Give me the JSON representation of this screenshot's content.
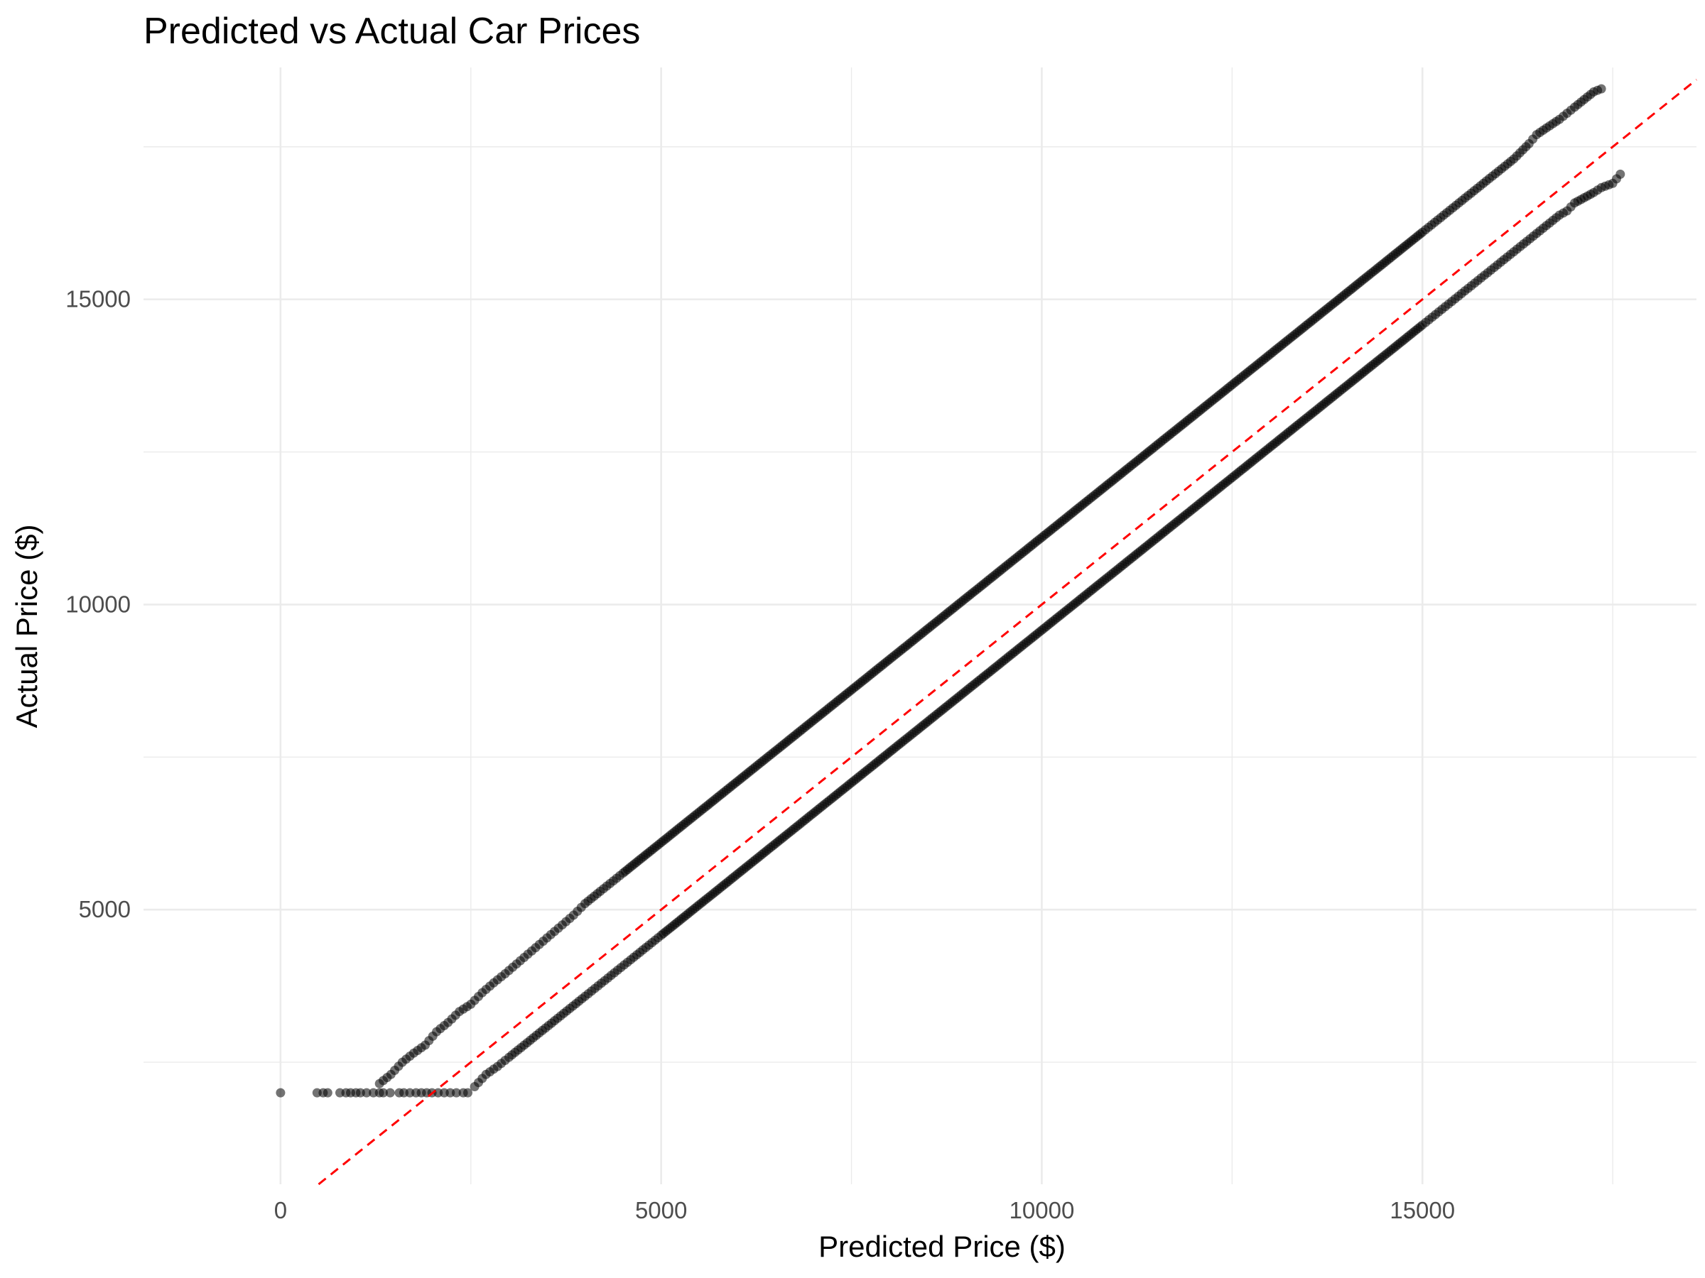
{
  "chart_data": {
    "type": "scatter",
    "title": "Predicted vs Actual Car Prices",
    "xlabel": "Predicted Price ($)",
    "ylabel": "Actual Price ($)",
    "xlim": [
      -1800,
      18600
    ],
    "ylim": [
      500,
      18800
    ],
    "x_ticks": [
      0,
      5000,
      10000,
      15000
    ],
    "x_tick_labels": [
      "0",
      "5000",
      "10000",
      "15000"
    ],
    "y_ticks": [
      5000,
      10000,
      15000
    ],
    "y_tick_labels": [
      "5000",
      "10000",
      "15000"
    ],
    "grid": true,
    "point_color": "#000000",
    "point_opacity": 0.55,
    "reference_line": {
      "slope": 1,
      "intercept": 0,
      "style": "dashed",
      "color": "#ff0000"
    },
    "series": [
      {
        "values": [
          [
            0,
            2000
          ],
          [
            480,
            2000
          ],
          [
            560,
            2000
          ],
          [
            620,
            2000
          ],
          [
            780,
            2000
          ],
          [
            860,
            2000
          ],
          [
            920,
            2000
          ],
          [
            990,
            2000
          ],
          [
            1050,
            2000
          ],
          [
            1130,
            2000
          ],
          [
            1220,
            2000
          ],
          [
            1300,
            2000
          ],
          [
            1350,
            2000
          ],
          [
            1440,
            2000
          ],
          [
            1560,
            2000
          ],
          [
            1620,
            2000
          ],
          [
            1700,
            2000
          ],
          [
            1780,
            2000
          ],
          [
            1850,
            2000
          ],
          [
            1920,
            2000
          ],
          [
            1990,
            2000
          ],
          [
            2070,
            2000
          ],
          [
            2150,
            2000
          ],
          [
            2230,
            2000
          ],
          [
            2310,
            2000
          ],
          [
            2400,
            2000
          ],
          [
            2460,
            2000
          ]
        ]
      },
      {
        "values": [
          [
            1300,
            2150
          ],
          [
            1450,
            2300
          ],
          [
            1600,
            2500
          ],
          [
            1750,
            2650
          ],
          [
            1900,
            2780
          ],
          [
            2050,
            3000
          ],
          [
            2200,
            3150
          ],
          [
            2350,
            3330
          ],
          [
            2500,
            3450
          ],
          [
            2650,
            3640
          ],
          [
            2800,
            3800
          ],
          [
            2950,
            3950
          ],
          [
            3100,
            4110
          ],
          [
            3250,
            4270
          ],
          [
            3400,
            4430
          ],
          [
            3550,
            4590
          ],
          [
            3700,
            4750
          ],
          [
            3850,
            4910
          ],
          [
            4000,
            5100
          ],
          [
            4200,
            5300
          ],
          [
            4500,
            5600
          ],
          [
            5000,
            6100
          ],
          [
            5500,
            6600
          ],
          [
            6000,
            7100
          ],
          [
            6500,
            7600
          ],
          [
            7000,
            8100
          ],
          [
            7500,
            8600
          ],
          [
            8000,
            9100
          ],
          [
            8500,
            9600
          ],
          [
            9000,
            10100
          ],
          [
            9500,
            10600
          ],
          [
            10000,
            11100
          ],
          [
            10500,
            11600
          ],
          [
            11000,
            12100
          ],
          [
            11500,
            12600
          ],
          [
            12000,
            13100
          ],
          [
            12500,
            13600
          ],
          [
            13000,
            14100
          ],
          [
            13500,
            14600
          ],
          [
            14000,
            15100
          ],
          [
            14500,
            15600
          ],
          [
            15000,
            16100
          ],
          [
            15200,
            16300
          ],
          [
            15400,
            16500
          ],
          [
            15600,
            16700
          ],
          [
            15800,
            16900
          ],
          [
            16000,
            17100
          ],
          [
            16200,
            17300
          ],
          [
            16400,
            17550
          ],
          [
            16500,
            17700
          ],
          [
            16800,
            17950
          ],
          [
            16900,
            18050
          ],
          [
            17000,
            18150
          ],
          [
            17250,
            18400
          ],
          [
            17350,
            18450
          ]
        ]
      },
      {
        "values": [
          [
            2550,
            2100
          ],
          [
            2700,
            2300
          ],
          [
            2850,
            2430
          ],
          [
            3000,
            2580
          ],
          [
            3200,
            2780
          ],
          [
            3400,
            2980
          ],
          [
            3600,
            3180
          ],
          [
            3800,
            3380
          ],
          [
            4000,
            3580
          ],
          [
            4300,
            3880
          ],
          [
            4600,
            4180
          ],
          [
            5000,
            4580
          ],
          [
            5500,
            5080
          ],
          [
            6000,
            5580
          ],
          [
            6500,
            6080
          ],
          [
            7000,
            6580
          ],
          [
            7500,
            7080
          ],
          [
            8000,
            7580
          ],
          [
            8500,
            8080
          ],
          [
            9000,
            8580
          ],
          [
            9500,
            9080
          ],
          [
            10000,
            9580
          ],
          [
            10500,
            10080
          ],
          [
            11000,
            10580
          ],
          [
            11500,
            11080
          ],
          [
            12000,
            11580
          ],
          [
            12500,
            12080
          ],
          [
            13000,
            12580
          ],
          [
            13500,
            13080
          ],
          [
            14000,
            13580
          ],
          [
            14500,
            14080
          ],
          [
            15000,
            14580
          ],
          [
            15300,
            14880
          ],
          [
            15600,
            15180
          ],
          [
            15900,
            15480
          ],
          [
            16200,
            15780
          ],
          [
            16500,
            16080
          ],
          [
            16800,
            16380
          ],
          [
            16900,
            16450
          ],
          [
            17000,
            16580
          ],
          [
            17250,
            16750
          ],
          [
            17350,
            16830
          ],
          [
            17500,
            16900
          ],
          [
            17600,
            17050
          ]
        ]
      }
    ]
  }
}
